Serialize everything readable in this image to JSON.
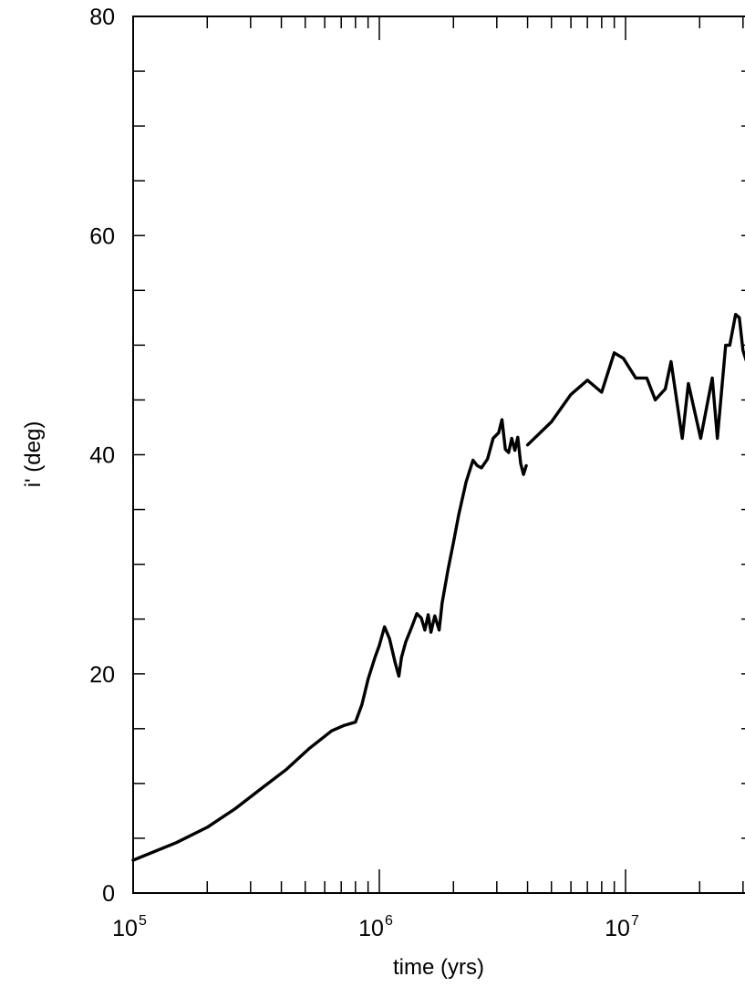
{
  "chart_data": {
    "type": "line",
    "title": "",
    "xlabel": "time (yrs)",
    "ylabel": "i' (deg)",
    "xscale": "log",
    "xlim": [
      100000,
      31000000
    ],
    "ylim": [
      0,
      80
    ],
    "grid": false,
    "x_tick_labels": [
      {
        "x": 100000,
        "base": "10",
        "exp": "5"
      },
      {
        "x": 1000000,
        "base": "10",
        "exp": "6"
      },
      {
        "x": 10000000,
        "base": "10",
        "exp": "7"
      }
    ],
    "y_tick_labels": [
      {
        "y": 0,
        "text": "0"
      },
      {
        "y": 20,
        "text": "20"
      },
      {
        "y": 40,
        "text": "40"
      },
      {
        "y": 60,
        "text": "60"
      },
      {
        "y": 80,
        "text": "80"
      }
    ],
    "series": [
      {
        "points": [
          [
            100000,
            3.0
          ],
          [
            150000,
            4.6
          ],
          [
            200000,
            6.0
          ],
          [
            260000,
            7.7
          ],
          [
            330000,
            9.5
          ],
          [
            420000,
            11.3
          ],
          [
            520000,
            13.2
          ],
          [
            640000,
            14.8
          ],
          [
            720000,
            15.3
          ],
          [
            800000,
            15.6
          ],
          [
            850000,
            17.2
          ],
          [
            900000,
            19.5
          ],
          [
            960000,
            21.5
          ],
          [
            1000000,
            22.6
          ],
          [
            1050000,
            24.3
          ],
          [
            1100000,
            23.2
          ],
          [
            1160000,
            21.0
          ],
          [
            1200000,
            19.8
          ],
          [
            1230000,
            21.5
          ],
          [
            1280000,
            22.9
          ],
          [
            1350000,
            24.2
          ],
          [
            1420000,
            25.5
          ],
          [
            1480000,
            25.1
          ],
          [
            1530000,
            24.0
          ],
          [
            1580000,
            25.4
          ],
          [
            1620000,
            23.8
          ],
          [
            1680000,
            25.3
          ],
          [
            1750000,
            24.0
          ],
          [
            1800000,
            26.5
          ],
          [
            1900000,
            29.5
          ],
          [
            2000000,
            32.0
          ],
          [
            2100000,
            34.5
          ],
          [
            2250000,
            37.5
          ],
          [
            2400000,
            39.5
          ],
          [
            2500000,
            39.0
          ],
          [
            2600000,
            38.8
          ],
          [
            2750000,
            39.6
          ],
          [
            2900000,
            41.5
          ],
          [
            3050000,
            42.0
          ],
          [
            3150000,
            43.2
          ],
          [
            3250000,
            40.5
          ],
          [
            3350000,
            40.2
          ],
          [
            3450000,
            41.5
          ],
          [
            3550000,
            40.4
          ],
          [
            3650000,
            41.6
          ],
          [
            3750000,
            39.2
          ],
          [
            3850000,
            38.2
          ],
          [
            3950000,
            39.0
          ]
        ]
      },
      {
        "points": [
          [
            4000000,
            40.9
          ],
          [
            5000000,
            43.0
          ],
          [
            6000000,
            45.5
          ],
          [
            7000000,
            46.8
          ],
          [
            8000000,
            45.7
          ],
          [
            9000000,
            49.3
          ],
          [
            9800000,
            48.8
          ],
          [
            11000000,
            47.0
          ],
          [
            12200000,
            47.0
          ],
          [
            13200000,
            45.0
          ],
          [
            14500000,
            46.0
          ],
          [
            15300000,
            48.5
          ],
          [
            17000000,
            41.5
          ],
          [
            18000000,
            46.5
          ],
          [
            20200000,
            41.5
          ],
          [
            22500000,
            47.0
          ],
          [
            23600000,
            41.5
          ],
          [
            25500000,
            50.0
          ],
          [
            26500000,
            50.0
          ],
          [
            28000000,
            52.8
          ],
          [
            29000000,
            52.5
          ],
          [
            30000000,
            49.5
          ],
          [
            31000000,
            48.5
          ]
        ]
      }
    ]
  }
}
